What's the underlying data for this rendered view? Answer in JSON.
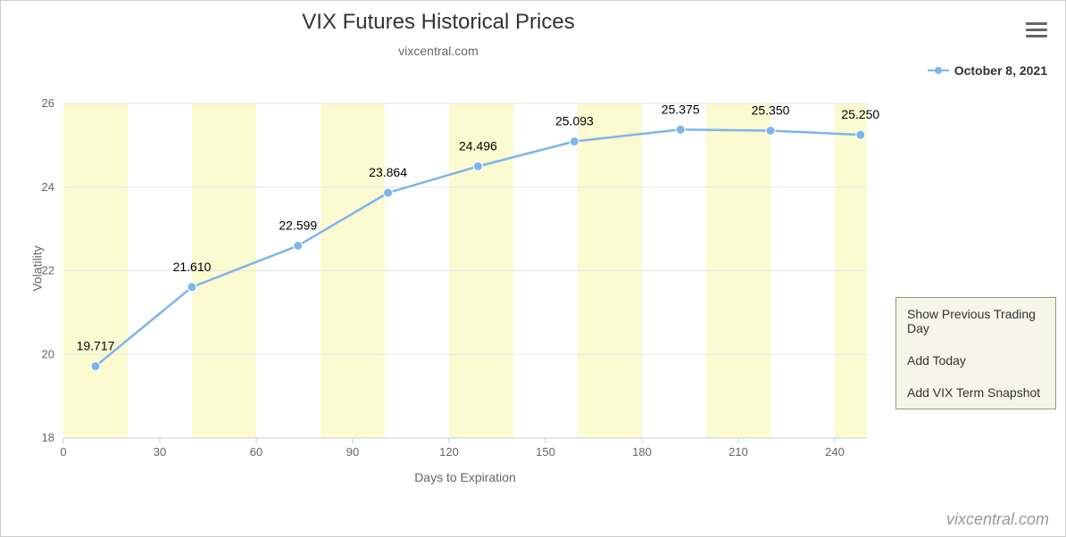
{
  "chart": {
    "type": "line",
    "title": "VIX Futures Historical Prices",
    "subtitle": "vixcentral.com",
    "xlabel": "Days to Expiration",
    "ylabel": "Volatility",
    "xlim": [
      0,
      250
    ],
    "ylim": [
      18,
      26
    ],
    "xtick_step": 30,
    "ytick_step": 2,
    "xticks": [
      0,
      30,
      60,
      90,
      120,
      150,
      180,
      210,
      240
    ],
    "yticks": [
      18,
      20,
      22,
      24,
      26
    ],
    "title_fontsize": 24,
    "subtitle_fontsize": 14,
    "label_fontsize": 14,
    "tick_fontsize": 13,
    "datalabel_fontsize": 14,
    "background_color": "#ffffff",
    "plot_background_color": "#ffffff",
    "alt_band_color": "#fbfad0",
    "grid_color": "#e6e6e6",
    "axis_line_color": "#c0d0e0",
    "tick_label_color": "#666666",
    "line_color": "#7cb5ec",
    "line_width": 2.5,
    "marker_color": "#7cb5ec",
    "marker_size": 5,
    "alt_bands_x": [
      [
        0,
        20
      ],
      [
        40,
        60
      ],
      [
        80,
        100
      ],
      [
        120,
        140
      ],
      [
        160,
        180
      ],
      [
        200,
        220
      ],
      [
        240,
        250
      ]
    ],
    "series": {
      "name": "October 8, 2021",
      "x": [
        10,
        40,
        73,
        101,
        129,
        159,
        192,
        220,
        248
      ],
      "y": [
        19.717,
        21.61,
        22.599,
        23.864,
        24.496,
        25.093,
        25.375,
        25.35,
        25.25
      ],
      "labels": [
        "19.717",
        "21.610",
        "22.599",
        "23.864",
        "24.496",
        "25.093",
        "25.375",
        "25.350",
        "25.250"
      ]
    }
  },
  "legend": {
    "label": "October 8, 2021",
    "color": "#7cb5ec"
  },
  "actions": {
    "items": [
      "Show Previous Trading Day",
      "Add Today",
      "Add VIX Term Snapshot"
    ],
    "border_color": "#8b9e6b",
    "background_color": "#f5f5e8"
  },
  "watermark": "vixcentral.com"
}
